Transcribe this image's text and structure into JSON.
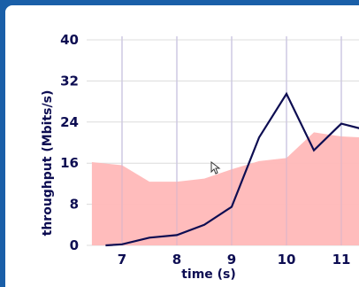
{
  "chart_data": {
    "type": "line",
    "xlabel": "time (s)",
    "ylabel": "throughput (Mbits/s)",
    "xlim": [
      6.45,
      11.4
    ],
    "ylim": [
      0,
      40
    ],
    "x_ticks": [
      7,
      8,
      9,
      10,
      11
    ],
    "y_ticks": [
      0,
      8,
      16,
      24,
      32,
      40
    ],
    "grid": true,
    "series": [
      {
        "kind": "line",
        "color": "#0d0d52",
        "points": [
          [
            6.7,
            0
          ],
          [
            7,
            0.2
          ],
          [
            7.5,
            1.5
          ],
          [
            8,
            2
          ],
          [
            8.5,
            4
          ],
          [
            9,
            7.5
          ],
          [
            9.5,
            21
          ],
          [
            10,
            29.5
          ],
          [
            10.5,
            18.5
          ],
          [
            11,
            23.7
          ],
          [
            11.4,
            22.6
          ]
        ]
      },
      {
        "kind": "area",
        "color": "#ffb8b8",
        "points": [
          [
            6.45,
            16.2
          ],
          [
            7,
            15.6
          ],
          [
            7.5,
            12.4
          ],
          [
            8,
            12.4
          ],
          [
            8.5,
            13
          ],
          [
            9,
            14.8
          ],
          [
            9.5,
            16.4
          ],
          [
            10,
            17
          ],
          [
            10.5,
            22
          ],
          [
            11,
            21.2
          ],
          [
            11.4,
            21
          ]
        ]
      }
    ]
  }
}
